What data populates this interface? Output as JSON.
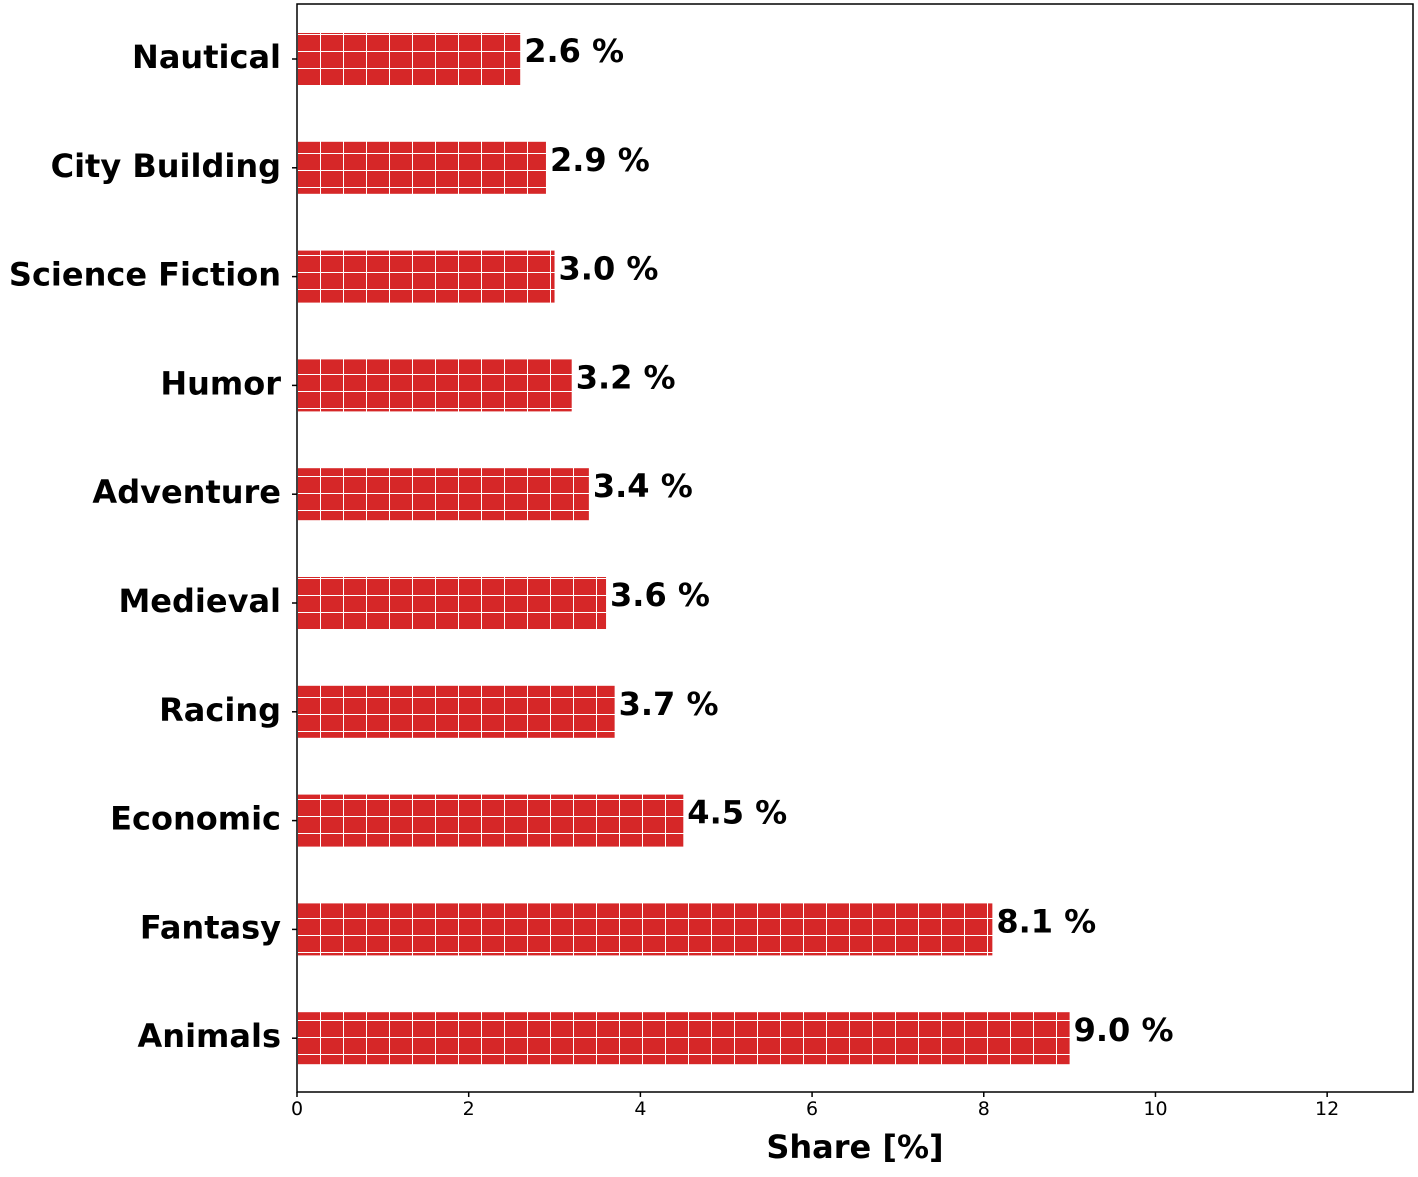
{
  "chart_data": {
    "type": "bar",
    "orientation": "horizontal",
    "categories": [
      "Nautical",
      "City Building",
      "Science Fiction",
      "Humor",
      "Adventure",
      "Medieval",
      "Racing",
      "Economic",
      "Fantasy",
      "Animals"
    ],
    "values": [
      2.6,
      2.9,
      3.0,
      3.2,
      3.4,
      3.6,
      3.7,
      4.5,
      8.1,
      9.0
    ],
    "data_labels": [
      "2.6 %",
      "2.9 %",
      "3.0 %",
      "3.2 %",
      "3.4 %",
      "3.6 %",
      "3.7 %",
      "4.5 %",
      "8.1 %",
      "9.0 %"
    ],
    "xlabel": "Share [%]",
    "ylabel": "",
    "xlim": [
      0,
      13
    ],
    "xticks": [
      0,
      2,
      4,
      6,
      8,
      10,
      12
    ],
    "xtick_labels": [
      "0",
      "2",
      "4",
      "6",
      "8",
      "10",
      "12"
    ],
    "grid": false,
    "bar_color": "#d62728",
    "bar_hatch": "grid",
    "hatch_color": "#ffffff"
  }
}
